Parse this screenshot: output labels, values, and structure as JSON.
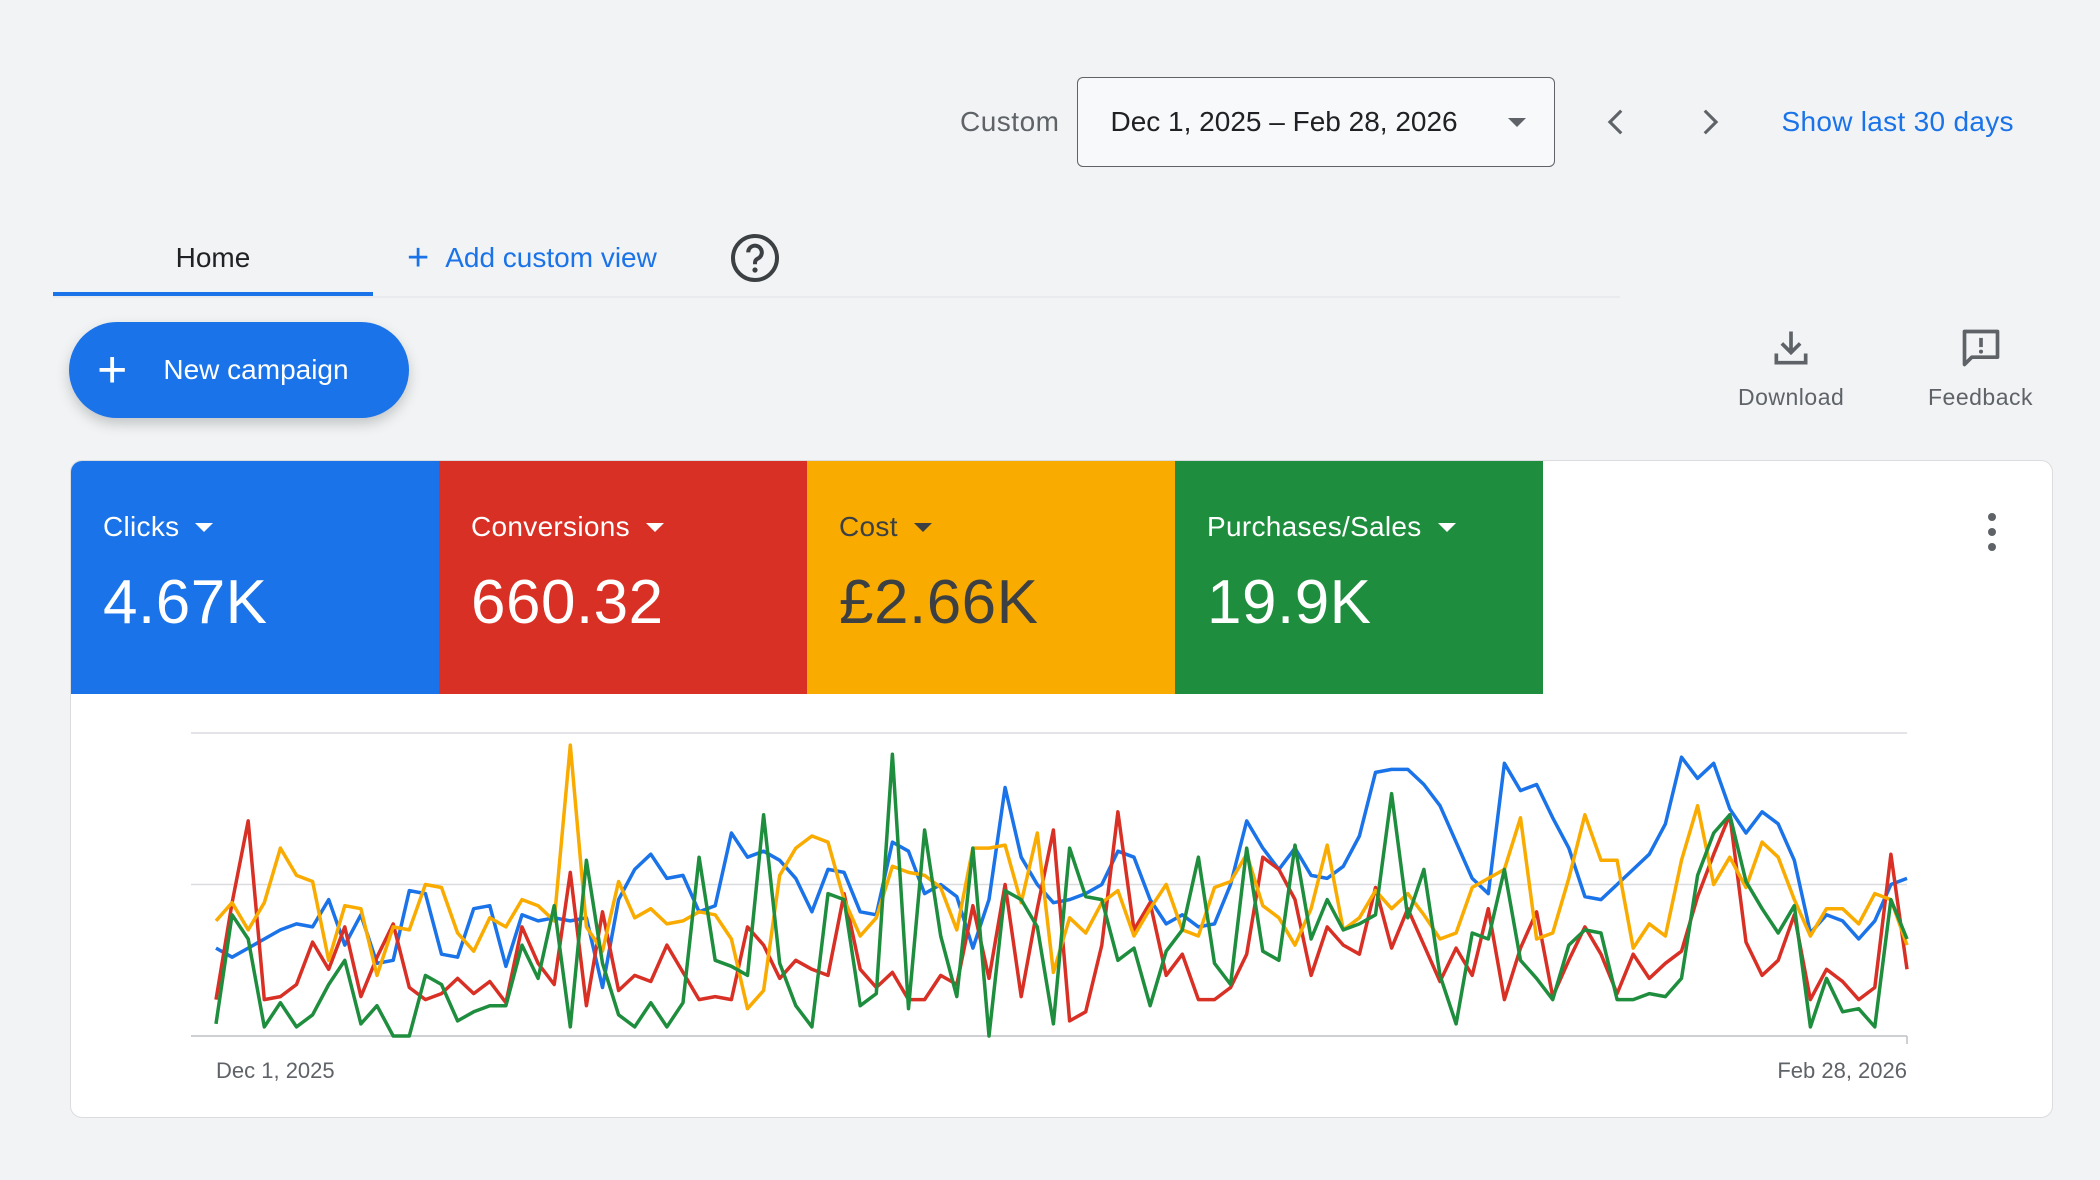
{
  "date_range": {
    "label": "Custom",
    "value": "Dec 1, 2025 – Feb 28, 2026",
    "prev_icon": "chevron-left-icon",
    "next_icon": "chevron-right-icon",
    "quick_link": "Show last 30 days"
  },
  "tabs": {
    "home": "Home",
    "add_custom_view": "Add custom view"
  },
  "new_campaign_label": "New campaign",
  "tools": {
    "download": "Download",
    "feedback": "Feedback"
  },
  "metrics": [
    {
      "label": "Clicks",
      "value": "4.67K",
      "color": "#1a73e8"
    },
    {
      "label": "Conversions",
      "value": "660.32",
      "color": "#d93025"
    },
    {
      "label": "Cost",
      "value": "£2.66K",
      "color": "#f9ab00"
    },
    {
      "label": "Purchases/Sales",
      "value": "19.9K",
      "color": "#1e8e3e"
    }
  ],
  "chart_data": {
    "type": "line",
    "x_start_label": "Dec 1, 2025",
    "x_end_label": "Feb 28, 2026",
    "gridlines": 3,
    "ylim": [
      0,
      100
    ],
    "series": [
      {
        "name": "Clicks",
        "color": "#1a73e8",
        "values": [
          29,
          26,
          29,
          32,
          35,
          37,
          36,
          45,
          30,
          40,
          24,
          25,
          48,
          47,
          27,
          26,
          42,
          43,
          23,
          40,
          38,
          39,
          38,
          39,
          16,
          45,
          55,
          60,
          52,
          53,
          41,
          43,
          67,
          59,
          61,
          58,
          52,
          41,
          55,
          54,
          41,
          40,
          64,
          61,
          47,
          50,
          46,
          29,
          45,
          82,
          59,
          50,
          44,
          45,
          47,
          50,
          61,
          59,
          45,
          37,
          40,
          36,
          37,
          50,
          71,
          62,
          55,
          62,
          53,
          52,
          56,
          66,
          87,
          88,
          88,
          83,
          76,
          64,
          52,
          47,
          90,
          81,
          83,
          72,
          62,
          46,
          45,
          50,
          55,
          60,
          70,
          92,
          85,
          90,
          75,
          67,
          74,
          70,
          58,
          34,
          40,
          38,
          32,
          38,
          50,
          52
        ]
      },
      {
        "name": "Conversions",
        "color": "#d93025",
        "values": [
          12,
          44,
          71,
          12,
          13,
          17,
          31,
          22,
          36,
          13,
          26,
          37,
          16,
          12,
          14,
          19,
          14,
          18,
          11,
          36,
          24,
          17,
          54,
          10,
          41,
          15,
          20,
          18,
          30,
          21,
          12,
          13,
          12,
          36,
          30,
          19,
          25,
          22,
          20,
          47,
          22,
          16,
          21,
          12,
          12,
          20,
          17,
          43,
          19,
          50,
          13,
          42,
          68,
          5,
          8,
          30,
          74,
          35,
          44,
          20,
          27,
          12,
          12,
          16,
          27,
          59,
          55,
          45,
          20,
          36,
          30,
          27,
          49,
          29,
          42,
          30,
          18,
          29,
          20,
          42,
          12,
          29,
          41,
          13,
          25,
          36,
          27,
          14,
          27,
          19,
          24,
          28,
          46,
          60,
          73,
          31,
          20,
          25,
          40,
          12,
          22,
          18,
          12,
          16,
          60,
          22
        ]
      },
      {
        "name": "Cost",
        "color": "#f9ab00",
        "values": [
          38,
          44,
          35,
          44,
          62,
          53,
          51,
          25,
          43,
          42,
          20,
          36,
          35,
          50,
          49,
          34,
          28,
          39,
          36,
          45,
          43,
          38,
          96,
          36,
          28,
          51,
          39,
          42,
          37,
          38,
          41,
          40,
          32,
          9,
          15,
          53,
          62,
          66,
          64,
          45,
          33,
          39,
          56,
          54,
          53,
          49,
          35,
          62,
          62,
          63,
          44,
          67,
          21,
          39,
          34,
          44,
          48,
          33,
          42,
          50,
          35,
          33,
          49,
          51,
          60,
          43,
          39,
          30,
          42,
          63,
          35,
          39,
          48,
          42,
          47,
          40,
          32,
          34,
          49,
          52,
          55,
          72,
          32,
          34,
          52,
          73,
          58,
          58,
          29,
          37,
          33,
          58,
          76,
          50,
          59,
          49,
          64,
          59,
          45,
          33,
          42,
          42,
          37,
          47,
          45,
          30
        ]
      },
      {
        "name": "Purchases/Sales",
        "color": "#1e8e3e",
        "values": [
          4,
          40,
          32,
          3,
          11,
          3,
          7,
          17,
          25,
          4,
          10,
          0,
          0,
          20,
          17,
          5,
          8,
          10,
          10,
          30,
          19,
          43,
          3,
          58,
          24,
          7,
          3,
          11,
          3,
          11,
          59,
          25,
          23,
          20,
          73,
          24,
          10,
          3,
          47,
          45,
          10,
          14,
          93,
          9,
          68,
          33,
          13,
          62,
          0,
          48,
          45,
          36,
          4,
          62,
          46,
          45,
          25,
          29,
          10,
          28,
          35,
          59,
          24,
          17,
          62,
          28,
          25,
          63,
          32,
          45,
          35,
          37,
          40,
          80,
          39,
          55,
          20,
          4,
          34,
          32,
          55,
          25,
          19,
          12,
          30,
          35,
          34,
          12,
          12,
          14,
          13,
          19,
          53,
          67,
          73,
          51,
          42,
          34,
          43,
          3,
          19,
          8,
          9,
          3,
          45,
          32
        ]
      }
    ]
  }
}
